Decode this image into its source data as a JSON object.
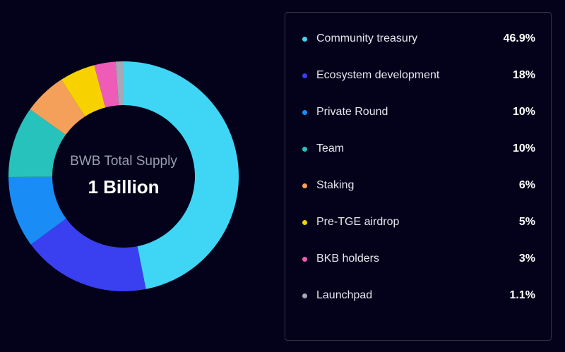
{
  "center": {
    "subtitle": "BWB Total Supply",
    "title": "1 Billion"
  },
  "chart_data": {
    "type": "pie",
    "categories": [
      "Community treasury",
      "Ecosystem development",
      "Private Round",
      "Team",
      "Staking",
      "Pre-TGE airdrop",
      "BKB holders",
      "Launchpad"
    ],
    "values": [
      46.9,
      18,
      10,
      10,
      6,
      5,
      3,
      1.1
    ],
    "value_labels": [
      "46.9%",
      "18%",
      "10%",
      "10%",
      "6%",
      "5%",
      "3%",
      "1.1%"
    ],
    "colors": [
      "#3fd6f5",
      "#3a3ff0",
      "#1a8cf5",
      "#27c2bc",
      "#f5a05a",
      "#f7d200",
      "#ef5cb8",
      "#a6a8b8"
    ],
    "legend_position": "right"
  }
}
